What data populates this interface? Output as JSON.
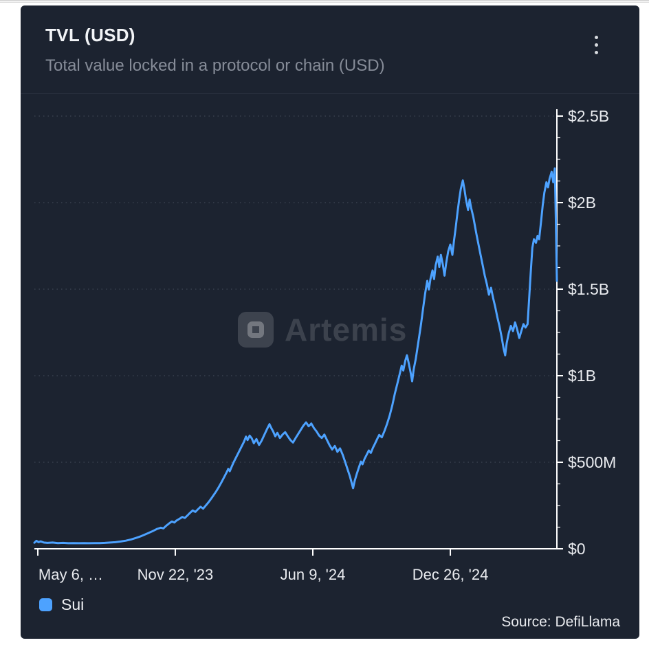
{
  "card": {
    "title": "TVL (USD)",
    "subtitle": "Total value locked in a protocol or chain (USD)",
    "watermark": "Artemis",
    "source": "Source: DefiLlama"
  },
  "legend": {
    "items": [
      {
        "label": "Sui",
        "color": "#4DA2FF"
      }
    ]
  },
  "colors": {
    "accent_line": "#4DA2FF",
    "card_background": "#1c2330",
    "axis": "#ffffff",
    "gridline": "rgba(140,148,164,0.38)",
    "label_text": "#e9ebef"
  },
  "chart_data": {
    "type": "line",
    "title": "TVL (USD)",
    "subtitle": "Total value locked in a protocol or chain (USD)",
    "grid": "horizontal-dotted",
    "legend_position": "bottom-left",
    "y_axis_side": "right",
    "y_unit": "USD, values in billions",
    "ylim": [
      0,
      2.5
    ],
    "y_ticks": [
      {
        "value": 0,
        "label": "$0"
      },
      {
        "value": 0.5,
        "label": "$500M"
      },
      {
        "value": 1,
        "label": "$1B"
      },
      {
        "value": 1.5,
        "label": "$1.5B"
      },
      {
        "value": 2,
        "label": "$2B"
      },
      {
        "value": 2.5,
        "label": "$2.5B"
      }
    ],
    "x_encoding": "fraction of x-axis width, 0 = May 2023 left edge, 1 = right edge (~May 2025)",
    "x_ticks": [
      {
        "t": 0.0066,
        "label": "May 6, …"
      },
      {
        "t": 0.2697,
        "label": "Nov 22, '23"
      },
      {
        "t": 0.5329,
        "label": "Jun 9, '24"
      },
      {
        "t": 0.7961,
        "label": "Dec 26, '24"
      }
    ],
    "series": [
      {
        "name": "Sui",
        "color": "#4DA2FF",
        "points": [
          [
            0.0,
            0.035
          ],
          [
            0.004,
            0.046
          ],
          [
            0.008,
            0.038
          ],
          [
            0.012,
            0.043
          ],
          [
            0.018,
            0.036
          ],
          [
            0.025,
            0.034
          ],
          [
            0.035,
            0.036
          ],
          [
            0.045,
            0.033
          ],
          [
            0.055,
            0.034
          ],
          [
            0.065,
            0.032
          ],
          [
            0.075,
            0.033
          ],
          [
            0.085,
            0.032
          ],
          [
            0.095,
            0.033
          ],
          [
            0.105,
            0.032
          ],
          [
            0.115,
            0.033
          ],
          [
            0.125,
            0.033
          ],
          [
            0.135,
            0.034
          ],
          [
            0.145,
            0.036
          ],
          [
            0.155,
            0.038
          ],
          [
            0.165,
            0.042
          ],
          [
            0.175,
            0.047
          ],
          [
            0.185,
            0.054
          ],
          [
            0.195,
            0.063
          ],
          [
            0.205,
            0.074
          ],
          [
            0.215,
            0.087
          ],
          [
            0.225,
            0.1
          ],
          [
            0.235,
            0.115
          ],
          [
            0.242,
            0.122
          ],
          [
            0.247,
            0.118
          ],
          [
            0.252,
            0.132
          ],
          [
            0.258,
            0.147
          ],
          [
            0.263,
            0.158
          ],
          [
            0.268,
            0.152
          ],
          [
            0.272,
            0.163
          ],
          [
            0.278,
            0.174
          ],
          [
            0.283,
            0.184
          ],
          [
            0.288,
            0.178
          ],
          [
            0.293,
            0.193
          ],
          [
            0.298,
            0.208
          ],
          [
            0.303,
            0.222
          ],
          [
            0.308,
            0.213
          ],
          [
            0.313,
            0.228
          ],
          [
            0.318,
            0.243
          ],
          [
            0.323,
            0.232
          ],
          [
            0.328,
            0.25
          ],
          [
            0.333,
            0.268
          ],
          [
            0.338,
            0.288
          ],
          [
            0.343,
            0.31
          ],
          [
            0.348,
            0.332
          ],
          [
            0.353,
            0.357
          ],
          [
            0.358,
            0.384
          ],
          [
            0.363,
            0.413
          ],
          [
            0.368,
            0.442
          ],
          [
            0.371,
            0.462
          ],
          [
            0.374,
            0.448
          ],
          [
            0.377,
            0.47
          ],
          [
            0.381,
            0.498
          ],
          [
            0.386,
            0.528
          ],
          [
            0.391,
            0.558
          ],
          [
            0.396,
            0.588
          ],
          [
            0.401,
            0.618
          ],
          [
            0.405,
            0.648
          ],
          [
            0.408,
            0.628
          ],
          [
            0.412,
            0.654
          ],
          [
            0.416,
            0.638
          ],
          [
            0.42,
            0.61
          ],
          [
            0.425,
            0.634
          ],
          [
            0.43,
            0.6
          ],
          [
            0.435,
            0.625
          ],
          [
            0.44,
            0.658
          ],
          [
            0.445,
            0.69
          ],
          [
            0.45,
            0.72
          ],
          [
            0.453,
            0.7
          ],
          [
            0.457,
            0.678
          ],
          [
            0.461,
            0.65
          ],
          [
            0.465,
            0.67
          ],
          [
            0.47,
            0.64
          ],
          [
            0.475,
            0.66
          ],
          [
            0.48,
            0.674
          ],
          [
            0.485,
            0.65
          ],
          [
            0.49,
            0.628
          ],
          [
            0.495,
            0.614
          ],
          [
            0.5,
            0.64
          ],
          [
            0.505,
            0.664
          ],
          [
            0.51,
            0.688
          ],
          [
            0.515,
            0.712
          ],
          [
            0.52,
            0.73
          ],
          [
            0.525,
            0.708
          ],
          [
            0.53,
            0.724
          ],
          [
            0.535,
            0.698
          ],
          [
            0.54,
            0.678
          ],
          [
            0.545,
            0.654
          ],
          [
            0.55,
            0.64
          ],
          [
            0.555,
            0.66
          ],
          [
            0.56,
            0.628
          ],
          [
            0.565,
            0.598
          ],
          [
            0.57,
            0.574
          ],
          [
            0.575,
            0.594
          ],
          [
            0.58,
            0.56
          ],
          [
            0.585,
            0.58
          ],
          [
            0.59,
            0.544
          ],
          [
            0.595,
            0.5
          ],
          [
            0.6,
            0.454
          ],
          [
            0.604,
            0.418
          ],
          [
            0.607,
            0.384
          ],
          [
            0.61,
            0.35
          ],
          [
            0.613,
            0.392
          ],
          [
            0.617,
            0.432
          ],
          [
            0.621,
            0.47
          ],
          [
            0.625,
            0.504
          ],
          [
            0.628,
            0.488
          ],
          [
            0.632,
            0.52
          ],
          [
            0.636,
            0.544
          ],
          [
            0.64,
            0.568
          ],
          [
            0.644,
            0.554
          ],
          [
            0.648,
            0.584
          ],
          [
            0.652,
            0.608
          ],
          [
            0.656,
            0.634
          ],
          [
            0.66,
            0.658
          ],
          [
            0.665,
            0.644
          ],
          [
            0.67,
            0.68
          ],
          [
            0.675,
            0.722
          ],
          [
            0.68,
            0.77
          ],
          [
            0.685,
            0.828
          ],
          [
            0.69,
            0.898
          ],
          [
            0.695,
            0.958
          ],
          [
            0.7,
            1.02
          ],
          [
            0.703,
            1.058
          ],
          [
            0.706,
            1.03
          ],
          [
            0.71,
            1.088
          ],
          [
            0.713,
            1.118
          ],
          [
            0.716,
            1.078
          ],
          [
            0.72,
            1.02
          ],
          [
            0.723,
            0.968
          ],
          [
            0.726,
            1.038
          ],
          [
            0.73,
            1.098
          ],
          [
            0.733,
            1.158
          ],
          [
            0.736,
            1.218
          ],
          [
            0.74,
            1.298
          ],
          [
            0.744,
            1.388
          ],
          [
            0.748,
            1.478
          ],
          [
            0.752,
            1.548
          ],
          [
            0.755,
            1.498
          ],
          [
            0.758,
            1.558
          ],
          [
            0.762,
            1.608
          ],
          [
            0.765,
            1.558
          ],
          [
            0.768,
            1.638
          ],
          [
            0.772,
            1.688
          ],
          [
            0.775,
            1.628
          ],
          [
            0.778,
            1.698
          ],
          [
            0.782,
            1.638
          ],
          [
            0.785,
            1.578
          ],
          [
            0.788,
            1.648
          ],
          [
            0.792,
            1.718
          ],
          [
            0.796,
            1.758
          ],
          [
            0.8,
            1.698
          ],
          [
            0.803,
            1.778
          ],
          [
            0.806,
            1.848
          ],
          [
            0.81,
            1.948
          ],
          [
            0.813,
            2.018
          ],
          [
            0.816,
            2.078
          ],
          [
            0.82,
            2.128
          ],
          [
            0.823,
            2.078
          ],
          [
            0.826,
            2.018
          ],
          [
            0.83,
            1.958
          ],
          [
            0.833,
            2.018
          ],
          [
            0.836,
            1.968
          ],
          [
            0.84,
            1.918
          ],
          [
            0.843,
            1.868
          ],
          [
            0.846,
            1.818
          ],
          [
            0.85,
            1.758
          ],
          [
            0.854,
            1.698
          ],
          [
            0.858,
            1.638
          ],
          [
            0.862,
            1.578
          ],
          [
            0.866,
            1.528
          ],
          [
            0.87,
            1.468
          ],
          [
            0.874,
            1.508
          ],
          [
            0.878,
            1.448
          ],
          [
            0.882,
            1.398
          ],
          [
            0.886,
            1.338
          ],
          [
            0.89,
            1.288
          ],
          [
            0.894,
            1.228
          ],
          [
            0.898,
            1.158
          ],
          [
            0.901,
            1.118
          ],
          [
            0.904,
            1.188
          ],
          [
            0.908,
            1.248
          ],
          [
            0.912,
            1.288
          ],
          [
            0.916,
            1.258
          ],
          [
            0.92,
            1.308
          ],
          [
            0.924,
            1.268
          ],
          [
            0.928,
            1.218
          ],
          [
            0.932,
            1.258
          ],
          [
            0.936,
            1.298
          ],
          [
            0.94,
            1.278
          ],
          [
            0.944,
            1.298
          ],
          [
            0.947,
            1.448
          ],
          [
            0.95,
            1.598
          ],
          [
            0.953,
            1.738
          ],
          [
            0.956,
            1.788
          ],
          [
            0.96,
            1.768
          ],
          [
            0.963,
            1.808
          ],
          [
            0.966,
            1.788
          ],
          [
            0.97,
            1.898
          ],
          [
            0.973,
            1.988
          ],
          [
            0.976,
            2.058
          ],
          [
            0.98,
            2.118
          ],
          [
            0.983,
            2.088
          ],
          [
            0.986,
            2.138
          ],
          [
            0.99,
            2.178
          ],
          [
            0.993,
            2.118
          ],
          [
            0.996,
            2.198
          ],
          [
            0.998,
            1.898
          ],
          [
            1.0,
            1.548
          ]
        ]
      }
    ]
  }
}
